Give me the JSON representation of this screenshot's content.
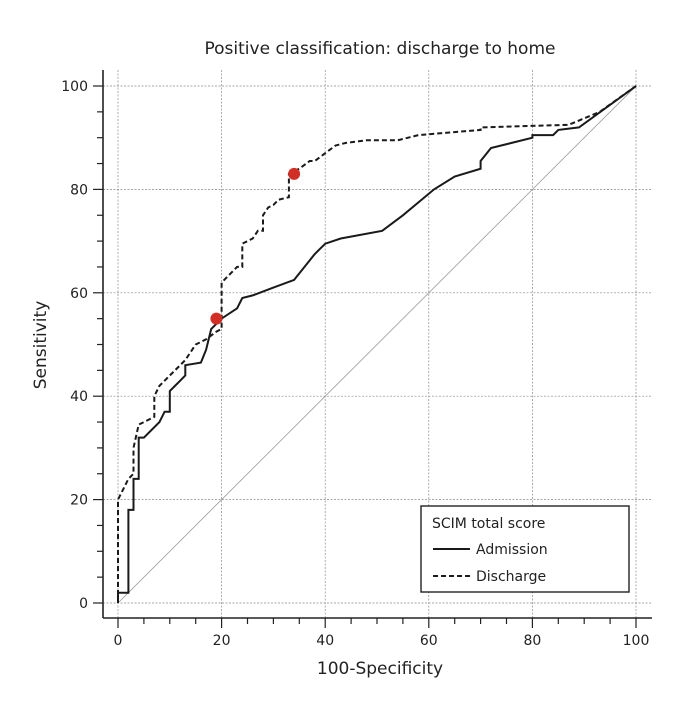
{
  "chart_data": {
    "type": "line",
    "title": "Positive classification: discharge to home",
    "xlabel": "100-Specificity",
    "ylabel": "Sensitivity",
    "xlim": [
      0,
      100
    ],
    "ylim": [
      0,
      100
    ],
    "xticks": [
      0,
      20,
      40,
      60,
      80,
      100
    ],
    "yticks": [
      0,
      20,
      40,
      60,
      80,
      100
    ],
    "grid": true,
    "legend": {
      "title": "SCIM total score",
      "placement": "bottom-right"
    },
    "reference_line": [
      [
        0,
        0
      ],
      [
        100,
        100
      ]
    ],
    "series": [
      {
        "name": "Admission",
        "style": "solid",
        "color": "#1a1a1a",
        "points": [
          [
            0,
            0
          ],
          [
            0,
            2
          ],
          [
            2,
            2
          ],
          [
            2,
            18
          ],
          [
            3,
            18
          ],
          [
            3,
            24
          ],
          [
            4,
            24
          ],
          [
            4,
            32
          ],
          [
            5,
            32
          ],
          [
            8,
            35
          ],
          [
            9,
            37
          ],
          [
            10,
            37
          ],
          [
            10,
            41
          ],
          [
            11,
            42
          ],
          [
            12,
            43
          ],
          [
            13,
            44
          ],
          [
            13,
            46
          ],
          [
            16,
            46.5
          ],
          [
            17,
            49
          ],
          [
            18,
            53
          ],
          [
            19,
            54
          ],
          [
            20,
            55
          ],
          [
            23,
            57
          ],
          [
            24,
            59
          ],
          [
            26,
            59.5
          ],
          [
            30,
            61
          ],
          [
            34,
            62.5
          ],
          [
            36,
            65
          ],
          [
            38,
            67.5
          ],
          [
            40,
            69.5
          ],
          [
            43,
            70.5
          ],
          [
            51,
            72
          ],
          [
            55,
            75
          ],
          [
            61,
            80
          ],
          [
            65,
            82.5
          ],
          [
            70,
            84
          ],
          [
            70,
            85.5
          ],
          [
            72,
            88
          ],
          [
            76,
            89
          ],
          [
            80,
            90
          ],
          [
            80,
            90.5
          ],
          [
            84,
            90.5
          ],
          [
            85,
            91.5
          ],
          [
            89,
            92
          ],
          [
            100,
            100
          ]
        ]
      },
      {
        "name": "Discharge",
        "style": "dashed",
        "color": "#1a1a1a",
        "points": [
          [
            0,
            0
          ],
          [
            0,
            20
          ],
          [
            1,
            22
          ],
          [
            2,
            24
          ],
          [
            3,
            25
          ],
          [
            3,
            30
          ],
          [
            4,
            34.5
          ],
          [
            5,
            35
          ],
          [
            7,
            36
          ],
          [
            7,
            40
          ],
          [
            8,
            42
          ],
          [
            10,
            44
          ],
          [
            12,
            46
          ],
          [
            13,
            47
          ],
          [
            15,
            50
          ],
          [
            17,
            51
          ],
          [
            19,
            52.5
          ],
          [
            20,
            53
          ],
          [
            20,
            62
          ],
          [
            22,
            64
          ],
          [
            23,
            65
          ],
          [
            24,
            65
          ],
          [
            24,
            69.5
          ],
          [
            26,
            70.5
          ],
          [
            27,
            72
          ],
          [
            28,
            72
          ],
          [
            28,
            75
          ],
          [
            29,
            76.5
          ],
          [
            30,
            77
          ],
          [
            31,
            78
          ],
          [
            33,
            78.5
          ],
          [
            33,
            83
          ],
          [
            35,
            84
          ],
          [
            37,
            85.5
          ],
          [
            38,
            85.5
          ],
          [
            40,
            87
          ],
          [
            42,
            88.5
          ],
          [
            44,
            89
          ],
          [
            48,
            89.5
          ],
          [
            54,
            89.5
          ],
          [
            58,
            90.5
          ],
          [
            64,
            91
          ],
          [
            70,
            91.5
          ],
          [
            70,
            92
          ],
          [
            87,
            92.5
          ],
          [
            93,
            95
          ],
          [
            100,
            100
          ]
        ]
      }
    ],
    "highlight_points": [
      {
        "x": 19,
        "y": 55,
        "color": "#d12f25"
      },
      {
        "x": 34,
        "y": 83,
        "color": "#d12f25"
      }
    ]
  }
}
